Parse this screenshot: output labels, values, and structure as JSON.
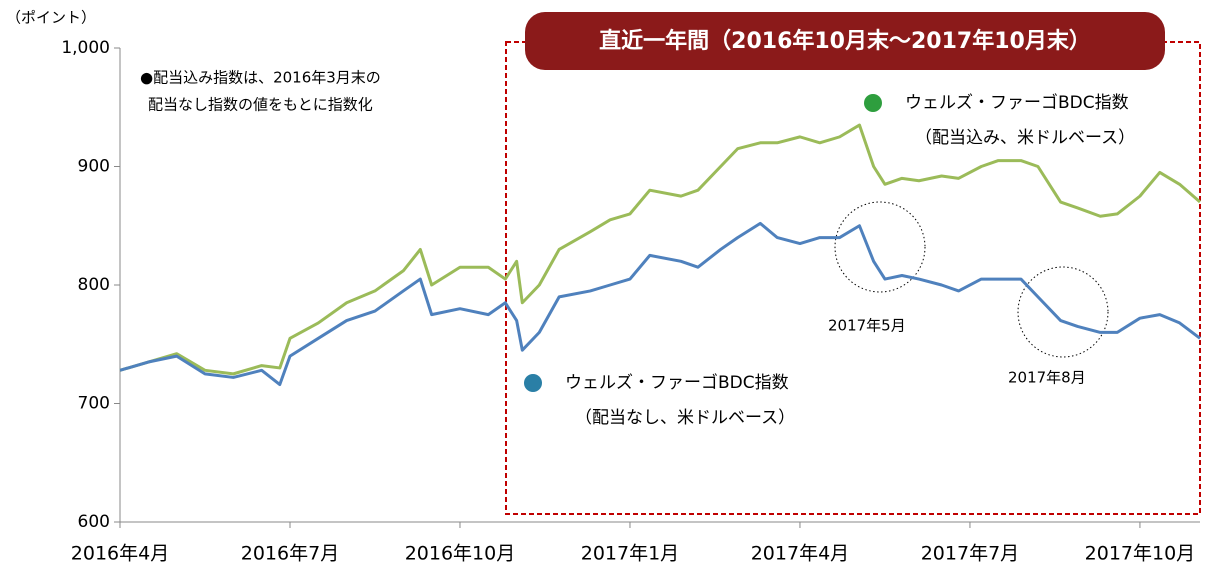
{
  "chart_data": {
    "type": "line",
    "y_label": "（ポイント）",
    "period_title": "直近一年間（2016年10月末～2017年10月末）",
    "note": [
      "●配当込み指数は、2016年3月末の",
      "配当なし指数の値をもとに指数化"
    ],
    "x": [
      0,
      0.5,
      1,
      1.5,
      2,
      2.5,
      2.82,
      3,
      3.5,
      4,
      4.5,
      5,
      5.3,
      5.5,
      6,
      6.5,
      6.8,
      7,
      7.1,
      7.4,
      7.75,
      8.3,
      8.65,
      9,
      9.35,
      9.9,
      10.2,
      10.6,
      10.9,
      11.3,
      11.6,
      12,
      12.35,
      12.7,
      13.05,
      13.3,
      13.5,
      13.8,
      14.1,
      14.5,
      14.8,
      15.2,
      15.5,
      15.9,
      16.2,
      16.6,
      16.9,
      17.3,
      17.6,
      18,
      18.35,
      18.7,
      19.06
    ],
    "xlim": [
      0,
      19.06
    ],
    "xticks": [
      {
        "value": 0,
        "label": "2016年4月"
      },
      {
        "value": 3,
        "label": "2016年7月"
      },
      {
        "value": 6,
        "label": "2016年10月"
      },
      {
        "value": 9,
        "label": "2017年1月"
      },
      {
        "value": 12,
        "label": "2017年4月"
      },
      {
        "value": 15,
        "label": "2017年7月"
      },
      {
        "value": 18,
        "label": "2017年10月"
      }
    ],
    "ylim": [
      600,
      1000
    ],
    "yticks": [
      600,
      700,
      800,
      900,
      {
        "value": 1000,
        "label": "1,000"
      }
    ],
    "series": [
      {
        "name": "ウェルズ・ファーゴBDC指数",
        "subtitle": "（配当込み、米ドルベース）",
        "color": "#9bbb59",
        "legend_color": "#2e9e3e",
        "values": [
          728,
          735,
          742,
          728,
          725,
          732,
          730,
          755,
          768,
          785,
          795,
          812,
          830,
          800,
          815,
          815,
          805,
          820,
          785,
          800,
          830,
          845,
          855,
          860,
          880,
          875,
          880,
          900,
          915,
          920,
          920,
          925,
          920,
          925,
          935,
          900,
          885,
          890,
          888,
          892,
          890,
          900,
          905,
          905,
          900,
          870,
          865,
          858,
          860,
          875,
          895,
          885,
          870
        ]
      },
      {
        "name": "ウェルズ・ファーゴBDC指数",
        "subtitle": "（配当なし、米ドルベース）",
        "color": "#4f81bd",
        "legend_color": "#2a7fa6",
        "values": [
          728,
          735,
          740,
          725,
          722,
          728,
          716,
          740,
          755,
          770,
          778,
          795,
          805,
          775,
          780,
          775,
          785,
          770,
          745,
          760,
          790,
          795,
          800,
          805,
          825,
          820,
          815,
          830,
          840,
          852,
          840,
          835,
          840,
          840,
          850,
          820,
          805,
          808,
          805,
          800,
          795,
          805,
          805,
          805,
          790,
          770,
          765,
          760,
          760,
          772,
          775,
          768,
          755
        ]
      }
    ],
    "annotations": [
      "2017年5月",
      "2017年8月"
    ]
  }
}
